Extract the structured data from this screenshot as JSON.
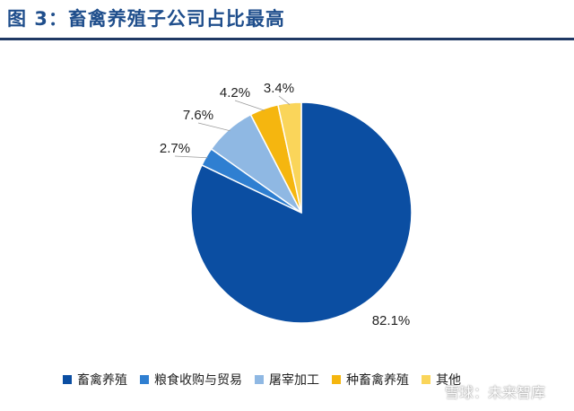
{
  "title": "图 3：畜禽养殖子公司占比最高",
  "watermark": "雪球：未来智库",
  "chart_data": {
    "type": "pie",
    "categories": [
      "畜禽养殖",
      "粮食收购与贸易",
      "屠宰加工",
      "种畜禽养殖",
      "其他"
    ],
    "values": [
      82.1,
      2.7,
      7.6,
      4.2,
      3.4
    ],
    "labels": [
      "82.1%",
      "2.7%",
      "7.6%",
      "4.2%",
      "3.4%"
    ],
    "colors": [
      "#0b4ea2",
      "#2f7fd1",
      "#8fb8e3",
      "#f5b60f",
      "#fad55a"
    ],
    "start_angle_deg": 0,
    "direction": "clockwise",
    "legend_position": "bottom"
  }
}
